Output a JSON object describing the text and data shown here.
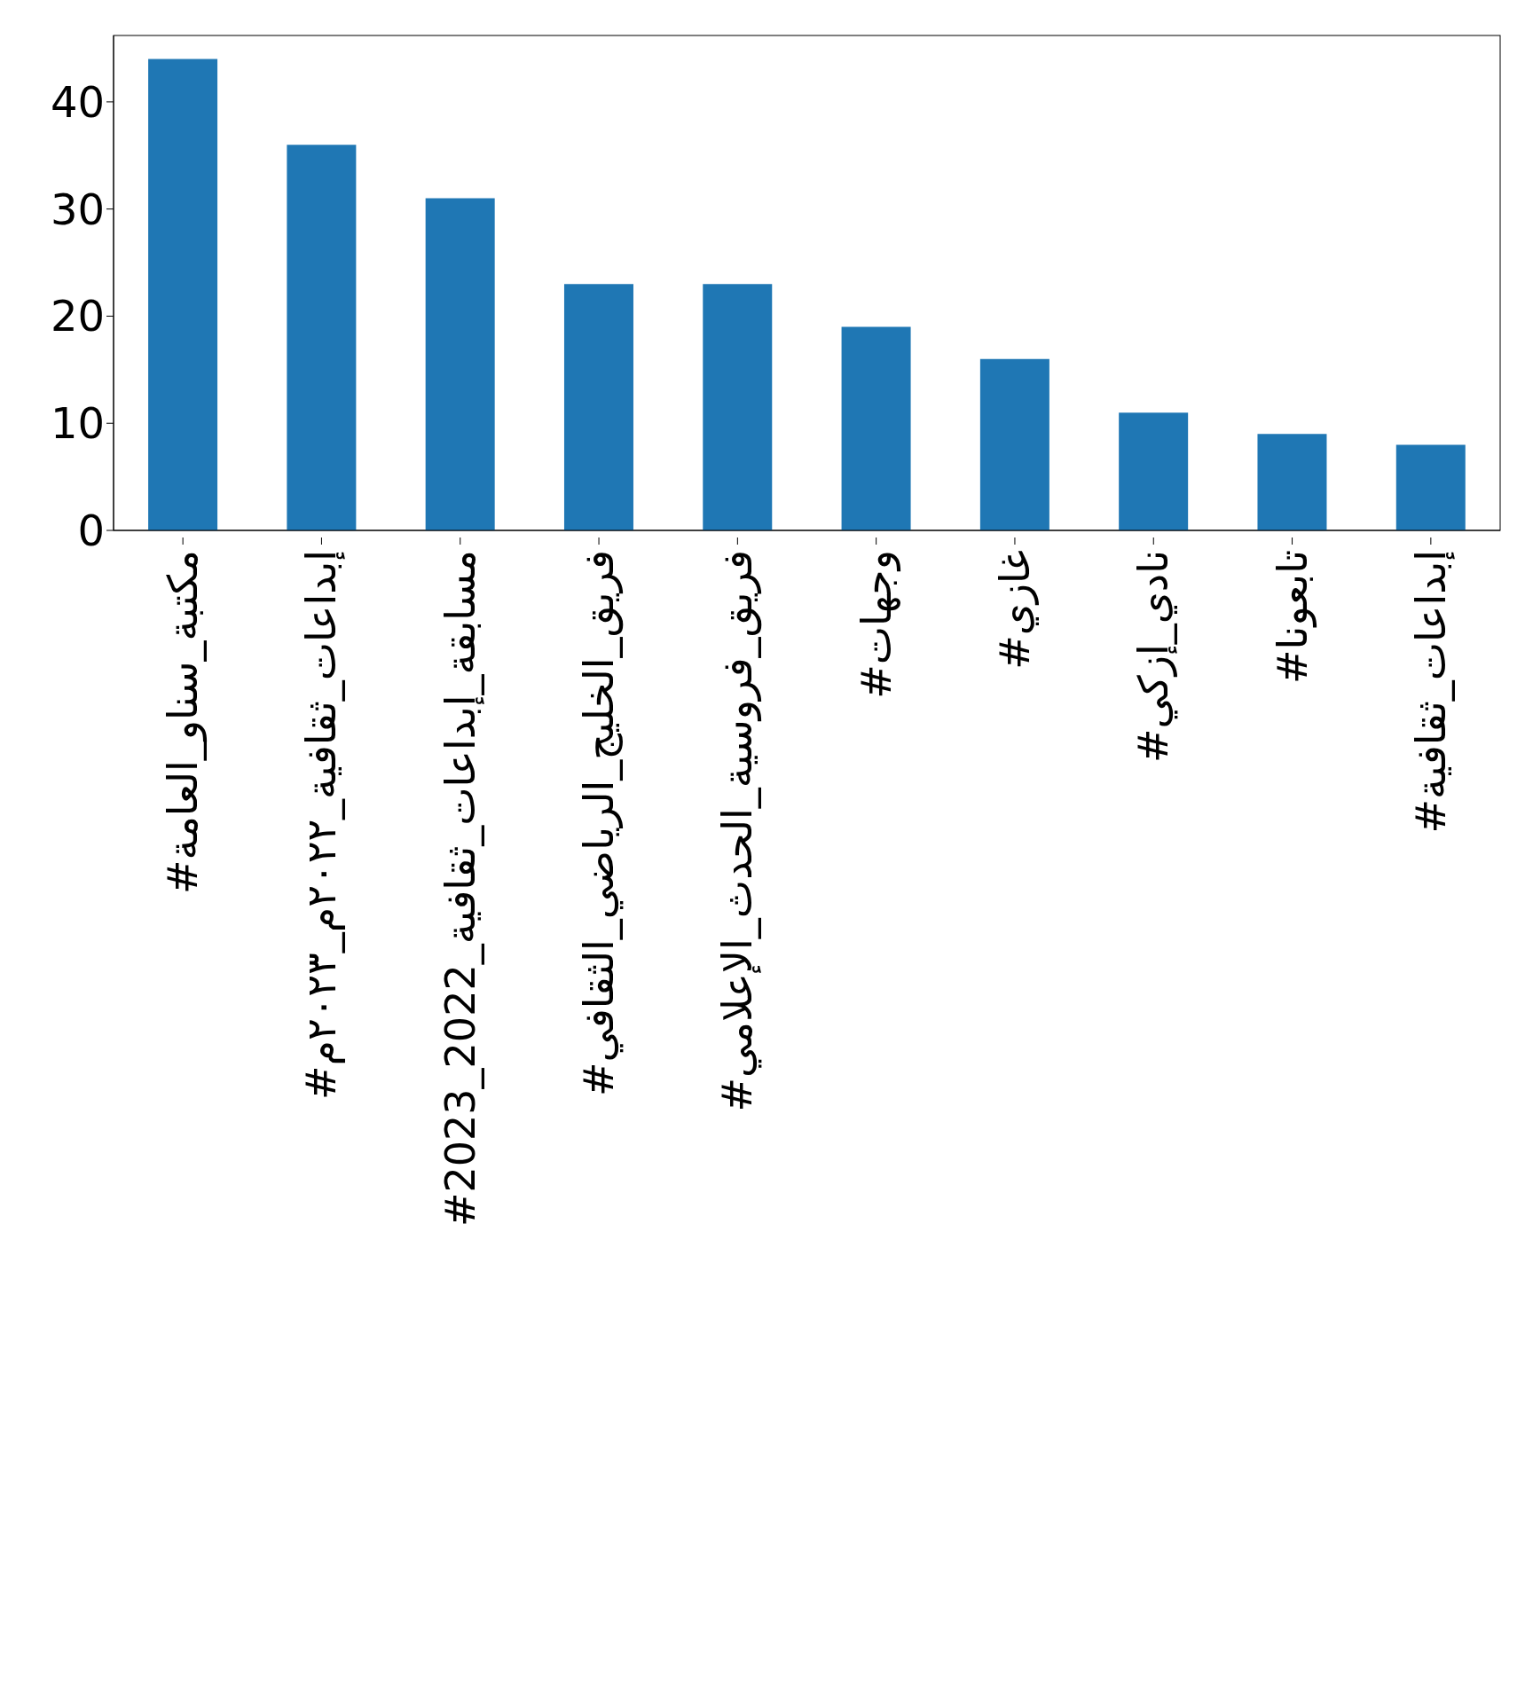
{
  "chart_data": {
    "type": "bar",
    "categories": [
      "#مكتبة_سناو_العامة",
      "#إبداعات_ثقافية_٢٠٢٢م_٢٠٢٣م",
      "#مسابقة_إبداعات_ثقافية_2022_2023",
      "#فريق_الخليج_الرياضي_الثقافي",
      "#فريق_فروسية_الحدث_الإعلامي",
      "#وجهات",
      "#غازي",
      "#نادي_إزكي",
      "#تابعونا",
      "#إبداعات_ثقافية"
    ],
    "values": [
      44,
      36,
      31,
      23,
      23,
      19,
      16,
      11,
      9,
      8
    ],
    "color": "#1f77b4",
    "ylim": [
      0,
      46.2
    ],
    "yticks": [
      0,
      10,
      20,
      30,
      40
    ],
    "grid": false,
    "legend": false
  }
}
